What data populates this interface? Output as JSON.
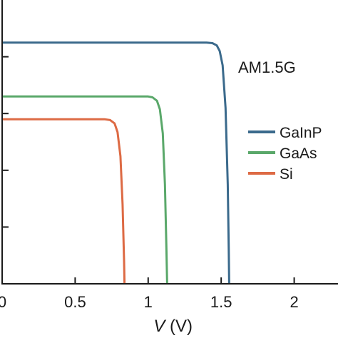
{
  "chart_data": {
    "type": "line",
    "xlabel_var": "V",
    "xlabel_unit": " (V)",
    "ylabel": "",
    "xlim": [
      0,
      2.3
    ],
    "ylim": [
      0,
      1.0
    ],
    "x_ticks": [
      0,
      0.5,
      1,
      1.5,
      2
    ],
    "x_tick_labels": [
      "0",
      "0.5",
      "1",
      "1.5",
      "2"
    ],
    "y_ticks": [
      0.2,
      0.4,
      0.6,
      0.8
    ],
    "annotation": "AM1.5G",
    "legend_position": "right",
    "series": [
      {
        "name": "GaInP",
        "color": "#3b6a8c",
        "points": [
          [
            0,
            0.85
          ],
          [
            1.4,
            0.85
          ],
          [
            1.44,
            0.848
          ],
          [
            1.47,
            0.84
          ],
          [
            1.49,
            0.82
          ],
          [
            1.51,
            0.77
          ],
          [
            1.53,
            0.62
          ],
          [
            1.545,
            0.35
          ],
          [
            1.552,
            0.12
          ],
          [
            1.555,
            0.0
          ]
        ]
      },
      {
        "name": "GaAs",
        "color": "#5aa86a",
        "points": [
          [
            0,
            0.66
          ],
          [
            1.0,
            0.66
          ],
          [
            1.03,
            0.657
          ],
          [
            1.06,
            0.645
          ],
          [
            1.08,
            0.615
          ],
          [
            1.1,
            0.53
          ],
          [
            1.115,
            0.35
          ],
          [
            1.125,
            0.12
          ],
          [
            1.13,
            0.0
          ]
        ]
      },
      {
        "name": "Si",
        "color": "#dd6a44",
        "points": [
          [
            0,
            0.58
          ],
          [
            0.7,
            0.58
          ],
          [
            0.74,
            0.577
          ],
          [
            0.77,
            0.565
          ],
          [
            0.79,
            0.535
          ],
          [
            0.81,
            0.45
          ],
          [
            0.825,
            0.28
          ],
          [
            0.835,
            0.08
          ],
          [
            0.838,
            0.0
          ]
        ]
      }
    ]
  }
}
